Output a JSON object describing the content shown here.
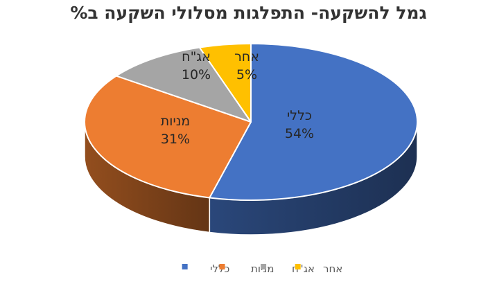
{
  "chart_data": {
    "type": "pie",
    "title": "גמל להשקעה- התפלגות מסלולי השקעה ב%",
    "categories": [
      "כללי",
      "מניות",
      "אג\"ח",
      "אחר"
    ],
    "values": [
      54,
      31,
      10,
      5
    ],
    "value_labels": [
      "54%",
      "31%",
      "10%",
      "5%"
    ],
    "colors": [
      "#4472C4",
      "#ED7D31",
      "#A5A5A5",
      "#FFC000"
    ],
    "legend": "bottom",
    "style": "3d"
  }
}
